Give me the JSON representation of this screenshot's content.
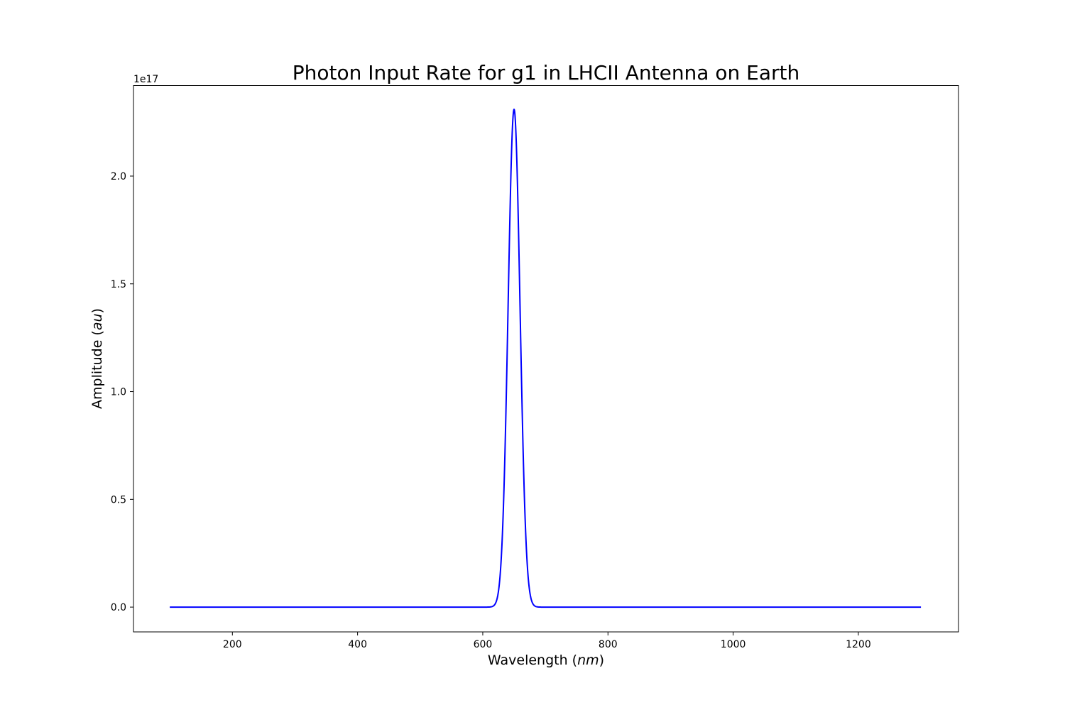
{
  "chart_data": {
    "type": "line",
    "title": "Photon Input Rate for g1 in LHCII Antenna on Earth",
    "xlabel_main": "Wavelength (",
    "xlabel_unit": "nm",
    "xlabel_end": ")",
    "ylabel_main": "Amplitude (",
    "ylabel_unit": "au",
    "ylabel_end": ")",
    "y_offset_text": "1e17",
    "y_scale_factor": 1e+17,
    "xlim": [
      42,
      1360
    ],
    "ylim": [
      -0.115,
      2.42
    ],
    "x_ticks": [
      200,
      400,
      600,
      800,
      1000,
      1200
    ],
    "x_tick_labels": [
      "200",
      "400",
      "600",
      "800",
      "1000",
      "1200"
    ],
    "y_ticks": [
      0.0,
      0.5,
      1.0,
      1.5,
      2.0
    ],
    "y_tick_labels": [
      "0.0",
      "0.5",
      "1.0",
      "1.5",
      "2.0"
    ],
    "grid": false,
    "legend": "none",
    "series": [
      {
        "color": "#0000ff",
        "curve": "gaussian",
        "x_range": [
          100,
          1300
        ],
        "peak_x": 650,
        "peak_y": 2.31,
        "sigma": 9.5,
        "baseline": 0.0
      }
    ]
  }
}
